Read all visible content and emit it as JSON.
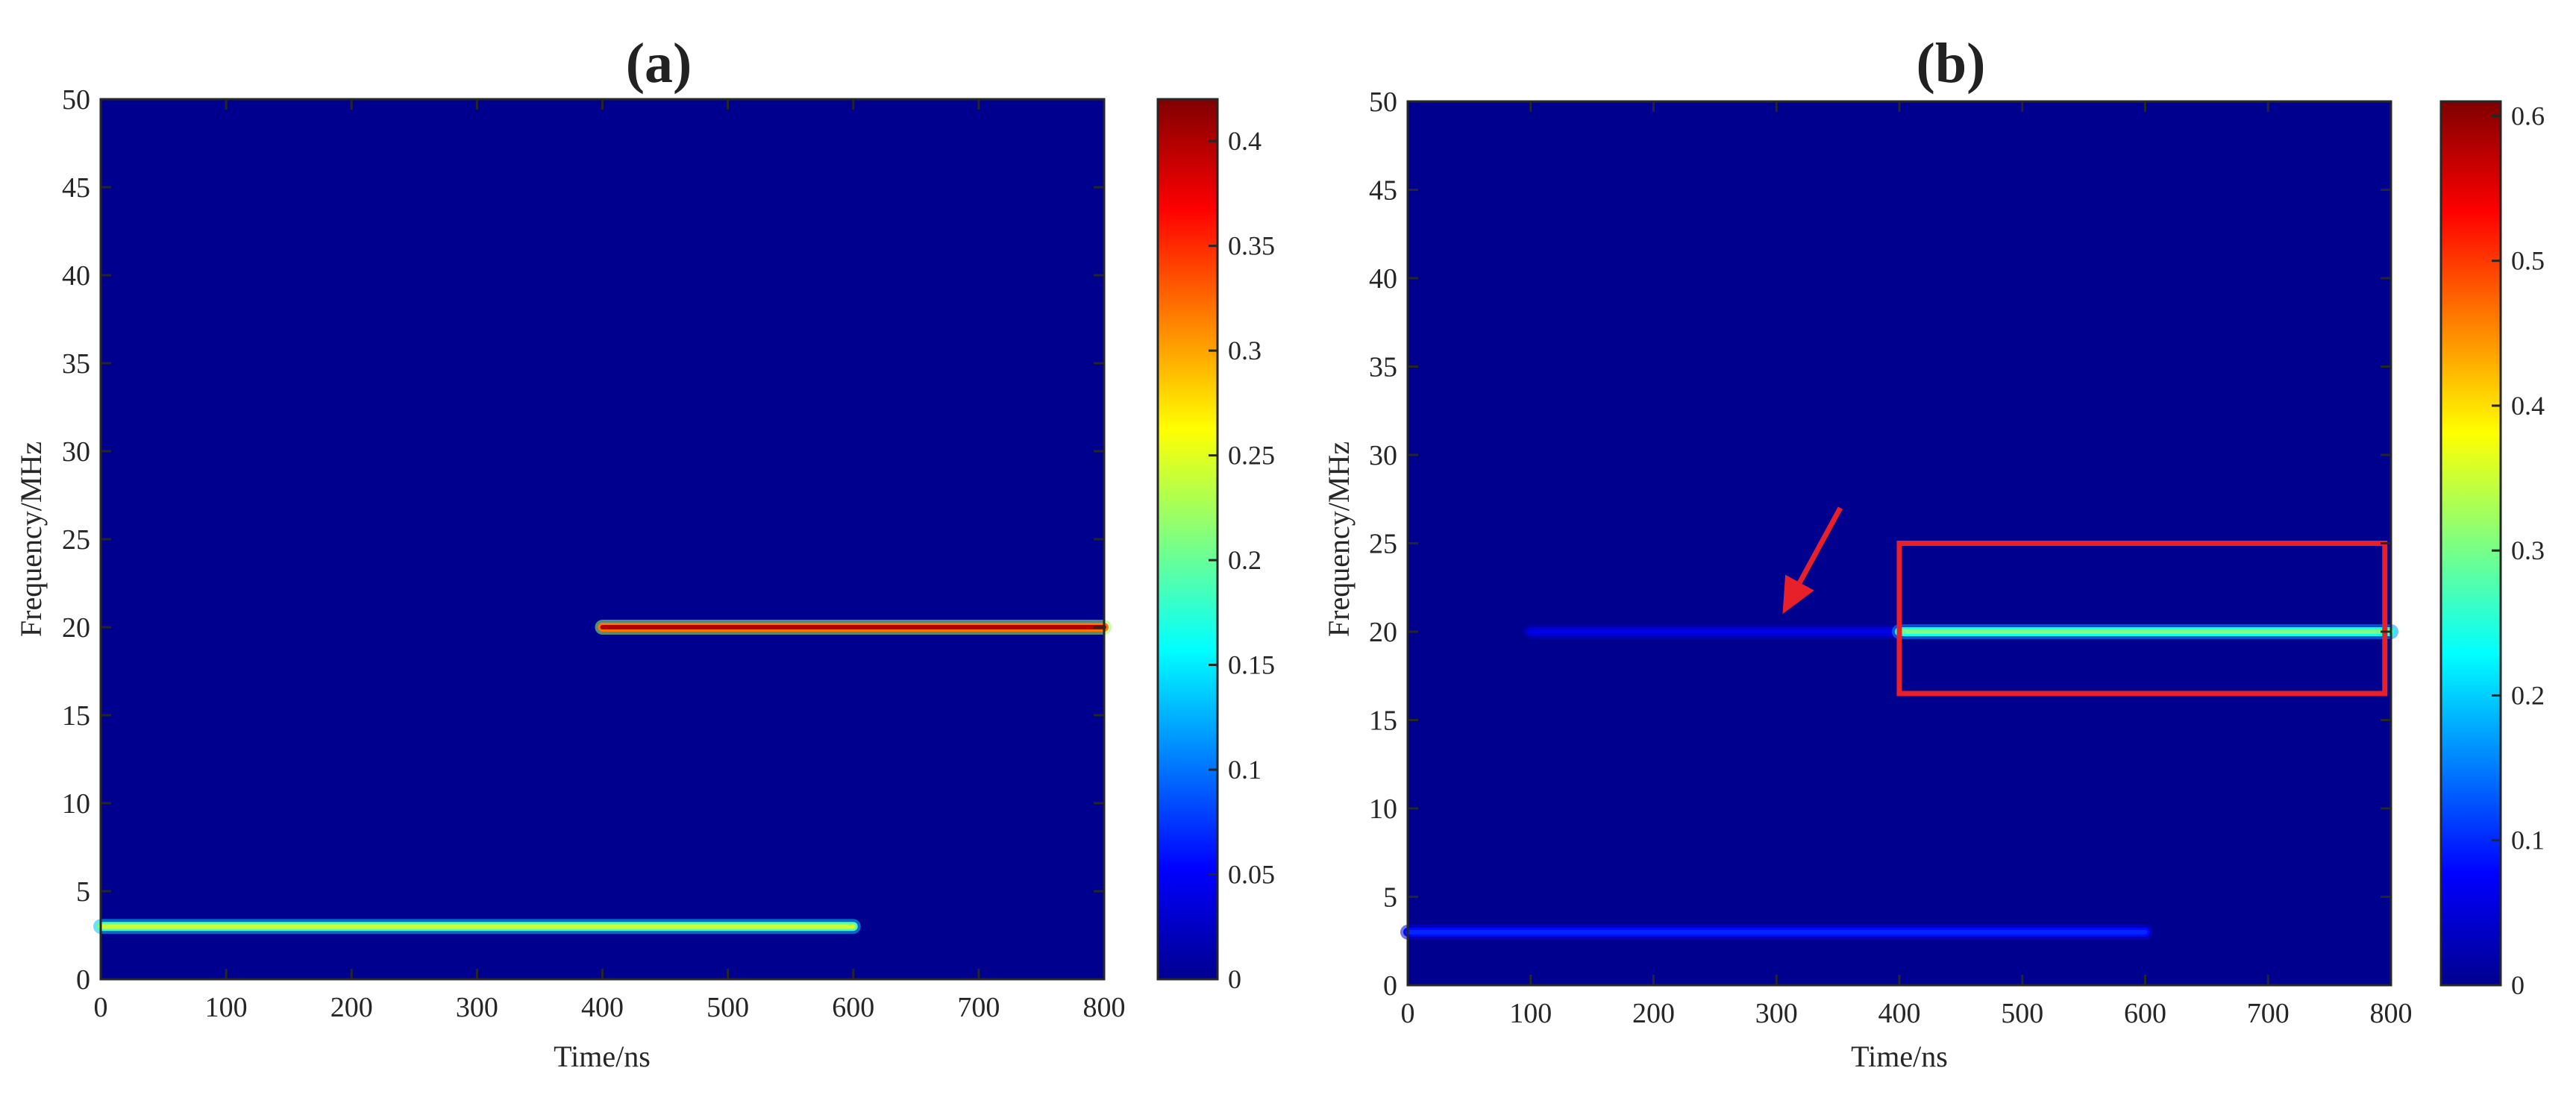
{
  "chart_data": [
    {
      "type": "heatmap",
      "title": "(a)",
      "xlabel": "Time/ns",
      "ylabel": "Frequency/MHz",
      "xlim": [
        0,
        800
      ],
      "ylim": [
        0,
        50
      ],
      "xticks": [
        0,
        100,
        200,
        300,
        400,
        500,
        600,
        700,
        800
      ],
      "yticks": [
        0,
        5,
        10,
        15,
        20,
        25,
        30,
        35,
        40,
        45,
        50
      ],
      "colormap": "jet",
      "colorbar": {
        "range": [
          0,
          0.42
        ],
        "ticks": [
          "0",
          "0.05",
          "0.1",
          "0.15",
          "0.2",
          "0.25",
          "0.3",
          "0.35",
          "0.4"
        ]
      },
      "grid": false,
      "background_color": "#00008F",
      "ridges": [
        {
          "t_start": 0,
          "t_end": 600,
          "freq": 3,
          "amplitude": 0.24
        },
        {
          "t_start": 400,
          "t_end": 800,
          "freq": 20,
          "amplitude": 0.4
        }
      ]
    },
    {
      "type": "heatmap",
      "title": "(b)",
      "xlabel": "Time/ns",
      "ylabel": "Frequency/MHz",
      "xlim": [
        0,
        800
      ],
      "ylim": [
        0,
        50
      ],
      "xticks": [
        0,
        100,
        200,
        300,
        400,
        500,
        600,
        700,
        800
      ],
      "yticks": [
        0,
        5,
        10,
        15,
        20,
        25,
        30,
        35,
        40,
        45,
        50
      ],
      "colormap": "jet",
      "colorbar": {
        "range": [
          0,
          0.61
        ],
        "ticks": [
          "0",
          "0.1",
          "0.2",
          "0.3",
          "0.4",
          "0.5",
          "0.6"
        ]
      },
      "grid": false,
      "background_color": "#00008F",
      "ridges": [
        {
          "t_start": 0,
          "t_end": 600,
          "freq": 3,
          "amplitude": 0.1
        },
        {
          "t_start": 100,
          "t_end": 400,
          "freq": 20,
          "amplitude": 0.06
        },
        {
          "t_start": 400,
          "t_end": 800,
          "freq": 20,
          "amplitude": 0.3
        }
      ],
      "annotations": [
        {
          "type": "rectangle",
          "color": "#E8202A",
          "x_range": [
            400,
            795
          ],
          "y_range": [
            16.5,
            25
          ]
        },
        {
          "type": "arrow",
          "color": "#E8202A",
          "from": [
            352,
            27
          ],
          "to": [
            305,
            21
          ]
        }
      ]
    }
  ]
}
